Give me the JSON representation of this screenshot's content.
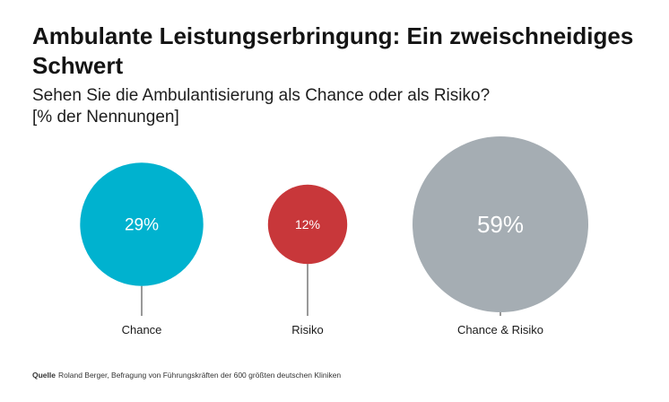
{
  "header": {
    "title": "Ambulante Leistungserbringung: Ein zweischneidiges Schwert",
    "subtitle_line1": "Sehen Sie die Ambulantisierung als Chance oder als Risiko?",
    "subtitle_line2": "[% der Nennungen]"
  },
  "colors": {
    "chance": "#00b2cf",
    "risiko": "#c8373a",
    "chance_risiko": "#a5adb3",
    "leader": "#333333"
  },
  "chart_data": {
    "type": "bubble",
    "title": "Ambulante Leistungserbringung: Ein zweischneidiges Schwert",
    "subtitle": "Sehen Sie die Ambulantisierung als Chance oder als Risiko?",
    "unit": "[% der Nennungen]",
    "categories": [
      "Chance",
      "Risiko",
      "Chance & Risiko"
    ],
    "values": [
      29,
      12,
      59
    ],
    "labels": [
      "29%",
      "12%",
      "59%"
    ],
    "colors": [
      "#00b2cf",
      "#c8373a",
      "#a5adb3"
    ]
  },
  "footer": {
    "source_label": "Quelle",
    "source_text": "Roland Berger, Befragung von Führungskräften der 600 größten deutschen Kliniken"
  }
}
